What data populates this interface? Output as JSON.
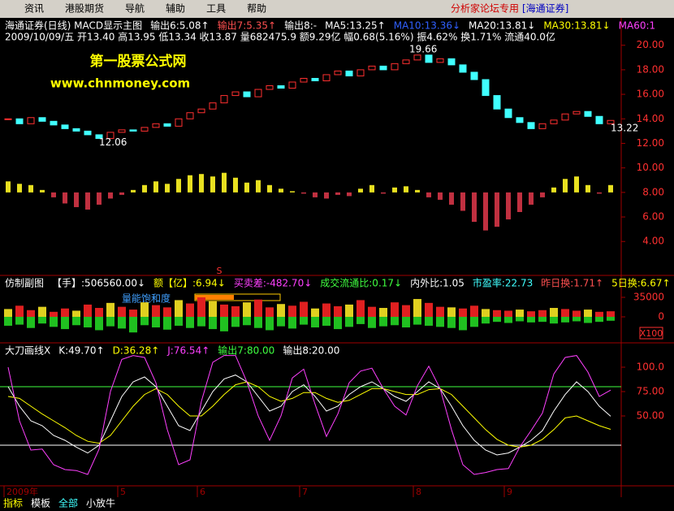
{
  "menu": {
    "items": [
      "资讯",
      "港股期货",
      "导航",
      "辅助",
      "工具",
      "帮助"
    ],
    "brand": "分析家论坛专用",
    "broker": "[海通证券]"
  },
  "price_panel": {
    "header": [
      {
        "text": "海通证券(日线) MACD显示主图",
        "color": "#ffffff"
      },
      {
        "text": "输出6:5.08↑",
        "color": "#ffffff"
      },
      {
        "text": "输出7:5.35↑",
        "color": "#ff5050"
      },
      {
        "text": "输出8:-",
        "color": "#ffffff"
      },
      {
        "text": "MA5:13.25↑",
        "color": "#ffffff"
      },
      {
        "text": "MA10:13.36↓",
        "color": "#3060ff"
      },
      {
        "text": "MA20:13.81↓",
        "color": "#ffffff"
      },
      {
        "text": "MA30:13.81↓",
        "color": "#ffff00"
      },
      {
        "text": "MA60:1",
        "color": "#ff40ff"
      }
    ],
    "info": "2009/10/09/五 开13.40 高13.95 低13.34 收13.87 量682475.9 额9.29亿 幅0.68(5.16%) 振4.62% 换1.71% 流通40.0亿",
    "watermark": [
      "第一股票公式网",
      "www.chnmoney.com"
    ],
    "annotations": {
      "high": 19.66,
      "low": 12.06,
      "last": 13.22
    },
    "ylim": [
      1.3,
      22.1
    ],
    "yticks": [
      {
        "value": 20,
        "label": "20.00"
      },
      {
        "value": 18,
        "label": "18.00"
      },
      {
        "value": 16,
        "label": "16.00"
      },
      {
        "value": 14,
        "label": "14.00"
      },
      {
        "value": 12,
        "label": "12.00"
      },
      {
        "value": 10,
        "label": "10.00"
      },
      {
        "value": 8,
        "label": "8.00"
      },
      {
        "value": 6,
        "label": "6.00"
      },
      {
        "value": 4,
        "label": "4.00"
      }
    ],
    "close": [
      14.0,
      13.6,
      14.1,
      13.8,
      13.5,
      13.2,
      13.0,
      12.7,
      12.4,
      12.9,
      13.1,
      13.0,
      13.3,
      13.6,
      13.4,
      14.0,
      14.5,
      14.8,
      15.3,
      15.9,
      16.2,
      15.8,
      16.4,
      16.7,
      16.5,
      17.0,
      17.3,
      17.1,
      17.6,
      17.9,
      17.5,
      18.0,
      18.3,
      18.0,
      18.5,
      18.8,
      19.2,
      18.6,
      18.9,
      18.4,
      17.8,
      17.2,
      15.9,
      14.8,
      14.1,
      13.7,
      13.2,
      13.6,
      13.9,
      14.4,
      14.6,
      14.2,
      13.6,
      13.87
    ],
    "macd": [
      8.9,
      8.7,
      8.6,
      8.2,
      7.6,
      7.1,
      6.8,
      6.6,
      7.0,
      7.5,
      7.8,
      8.2,
      8.6,
      8.9,
      8.7,
      9.1,
      9.4,
      9.5,
      9.3,
      9.6,
      9.2,
      8.8,
      9.0,
      8.6,
      8.3,
      8.1,
      7.9,
      7.6,
      7.5,
      7.8,
      7.7,
      8.3,
      8.6,
      7.9,
      8.4,
      8.5,
      8.2,
      7.6,
      7.4,
      7.0,
      6.5,
      5.6,
      4.9,
      5.2,
      5.8,
      6.4,
      7.0,
      7.6,
      8.4,
      9.1,
      9.3,
      8.6,
      7.9,
      8.6
    ]
  },
  "volume_panel": {
    "header": [
      {
        "text": "仿制副图",
        "color": "#ffffff"
      },
      {
        "text": "【手】:506560.00↓",
        "color": "#ffffff"
      },
      {
        "text": "额【亿】:6.94↓",
        "color": "#ffff00"
      },
      {
        "text": "买卖差:-482.70↓",
        "color": "#ff40ff"
      },
      {
        "text": "成交流通比:0.17↓",
        "color": "#40ff40"
      },
      {
        "text": "内外比:1.05",
        "color": "#ffffff"
      },
      {
        "text": "市盈率:22.73",
        "color": "#40ffff"
      },
      {
        "text": "昨日换:1.71↑",
        "color": "#ff5050"
      },
      {
        "text": "5日换:6.67↑",
        "color": "#ffff00"
      }
    ],
    "signal": "S",
    "label": "量能饱和度",
    "unit": "X100",
    "ylim": [
      -40000,
      70000
    ],
    "yticks": [
      35000,
      0
    ],
    "buy": [
      14000,
      20000,
      12000,
      18000,
      9000,
      15000,
      11000,
      22000,
      16000,
      25000,
      18000,
      13000,
      26000,
      21000,
      17000,
      30000,
      24000,
      35000,
      28000,
      22000,
      19000,
      26000,
      31000,
      17000,
      23000,
      20000,
      27000,
      15000,
      24000,
      19000,
      22000,
      30000,
      18000,
      16000,
      26000,
      21000,
      32000,
      25000,
      18000,
      17000,
      15000,
      20000,
      14000,
      12000,
      11000,
      13000,
      10000,
      12000,
      16000,
      14000,
      11000,
      13000,
      9000,
      10000
    ],
    "sell": [
      -16000,
      -14000,
      -20000,
      -12000,
      -18000,
      -22000,
      -15000,
      -19000,
      -24000,
      -17000,
      -21000,
      -28000,
      -15000,
      -19000,
      -23000,
      -16000,
      -20000,
      -17000,
      -22000,
      -26000,
      -18000,
      -15000,
      -20000,
      -24000,
      -17000,
      -21000,
      -14000,
      -19000,
      -16000,
      -22000,
      -18000,
      -13000,
      -20000,
      -17000,
      -15000,
      -19000,
      -14000,
      -16000,
      -18000,
      -20000,
      -24000,
      -18000,
      -12000,
      -9000,
      -11000,
      -8000,
      -10000,
      -9000,
      -12000,
      -10000,
      -8000,
      -11000,
      -9000,
      -7000
    ]
  },
  "kdj_panel": {
    "header": [
      {
        "text": "大刀画线X",
        "color": "#ffffff"
      },
      {
        "text": "K:49.70↑",
        "color": "#ffffff"
      },
      {
        "text": "D:36.28↑",
        "color": "#ffff00"
      },
      {
        "text": "J:76.54↑",
        "color": "#ff40ff"
      },
      {
        "text": "输出7:80.00",
        "color": "#40ff40"
      },
      {
        "text": "输出8:20.00",
        "color": "#ffffff"
      }
    ],
    "ylim": [
      -20,
      115
    ],
    "yticks": [
      {
        "value": 100,
        "label": "100.0"
      },
      {
        "value": 75,
        "label": "75.00"
      },
      {
        "value": 50,
        "label": "50.00"
      }
    ],
    "levels": [
      80,
      20
    ],
    "series": [
      {
        "name": "K",
        "color": "#ffffff",
        "values": [
          80,
          60,
          45,
          40,
          30,
          25,
          18,
          12,
          20,
          45,
          70,
          85,
          90,
          80,
          60,
          40,
          35,
          55,
          75,
          88,
          92,
          85,
          70,
          55,
          60,
          75,
          82,
          70,
          55,
          60,
          72,
          80,
          85,
          78,
          70,
          65,
          75,
          85,
          78,
          60,
          40,
          25,
          15,
          10,
          12,
          18,
          25,
          35,
          55,
          72,
          85,
          75,
          60,
          49.7
        ]
      },
      {
        "name": "D",
        "color": "#ffff00",
        "values": [
          70,
          68,
          60,
          52,
          45,
          38,
          30,
          24,
          22,
          30,
          45,
          60,
          72,
          78,
          72,
          60,
          50,
          50,
          60,
          72,
          82,
          85,
          80,
          70,
          65,
          68,
          74,
          74,
          68,
          64,
          66,
          72,
          78,
          78,
          75,
          72,
          72,
          77,
          78,
          72,
          60,
          48,
          36,
          26,
          20,
          18,
          20,
          26,
          36,
          48,
          50,
          45,
          40,
          36.28
        ]
      },
      {
        "name": "J",
        "color": "#ff40ff",
        "values": [
          100,
          45,
          15,
          16,
          0,
          -5,
          -6,
          -10,
          16,
          75,
          108,
          112,
          110,
          84,
          36,
          0,
          5,
          65,
          105,
          112,
          112,
          85,
          50,
          25,
          50,
          89,
          98,
          62,
          29,
          52,
          84,
          96,
          99,
          78,
          60,
          51,
          81,
          101,
          78,
          36,
          0,
          -10,
          -8,
          -5,
          -4,
          18,
          35,
          53,
          93,
          110,
          112,
          95,
          70,
          76.54
        ]
      }
    ]
  },
  "time_axis": {
    "labels": [
      "2009年",
      null,
      null,
      null,
      null,
      null,
      null,
      null,
      null,
      null,
      "5",
      null,
      null,
      null,
      null,
      null,
      null,
      "6",
      null,
      null,
      null,
      null,
      null,
      null,
      null,
      null,
      "7",
      null,
      null,
      null,
      null,
      null,
      null,
      null,
      null,
      null,
      "8",
      null,
      null,
      null,
      null,
      null,
      null,
      null,
      "9",
      null,
      null,
      null,
      null,
      null,
      null,
      null,
      null,
      null
    ]
  },
  "tabs": [
    "指标",
    "模板",
    "全部",
    "小放牛"
  ]
}
